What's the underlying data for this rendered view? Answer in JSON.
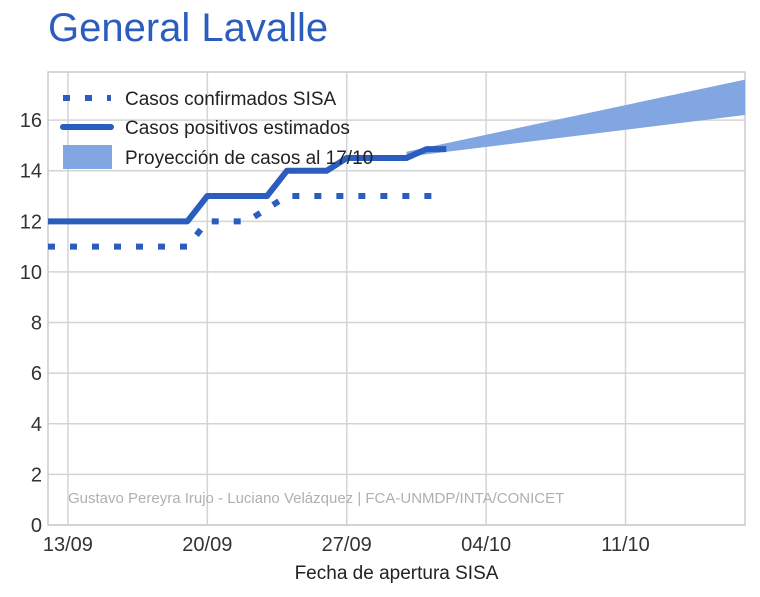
{
  "chart_data": {
    "type": "line",
    "title": "General Lavalle",
    "xlabel": "Fecha de apertura SISA",
    "ylabel": "",
    "credit": "Gustavo Pereyra Irujo - Luciano Velázquez | FCA-UNMDP/INTA/CONICET",
    "x_axis": {
      "unit": "date",
      "year": 2020,
      "ticks": [
        "13/09",
        "20/09",
        "27/09",
        "04/10",
        "11/10"
      ],
      "range": [
        "2020-09-12",
        "2020-10-17"
      ]
    },
    "y_axis": {
      "ticks": [
        0,
        2,
        4,
        6,
        8,
        10,
        12,
        14,
        16
      ],
      "ylim": [
        0,
        17.9
      ]
    },
    "grid": true,
    "legend": {
      "placement": "top-left",
      "entries": [
        "Casos confirmados SISA",
        "Casos positivos estimados",
        "Proyección de casos al 17/10"
      ]
    },
    "series": [
      {
        "name": "Casos confirmados SISA",
        "style": "dotted",
        "color": "#2b5dbf",
        "x": [
          "2020-09-12",
          "2020-09-19",
          "2020-09-20",
          "2020-09-22",
          "2020-09-23",
          "2020-09-24",
          "2020-10-02"
        ],
        "y": [
          11,
          11,
          12,
          12,
          12.5,
          13,
          13
        ]
      },
      {
        "name": "Casos positivos estimados",
        "style": "solid",
        "color": "#2b5dbf",
        "x": [
          "2020-09-12",
          "2020-09-19",
          "2020-09-20",
          "2020-09-23",
          "2020-09-24",
          "2020-09-26",
          "2020-09-27",
          "2020-09-30",
          "2020-10-01",
          "2020-10-02"
        ],
        "y": [
          12,
          12,
          13,
          13,
          14,
          14,
          14.5,
          14.5,
          14.85,
          14.85
        ]
      },
      {
        "name": "Proyección de casos al 17/10",
        "type": "area",
        "color": "#82a6e1",
        "x": [
          "2020-09-30",
          "2020-10-17"
        ],
        "lower": [
          14.55,
          16.2
        ],
        "upper": [
          14.75,
          17.6
        ]
      }
    ]
  }
}
